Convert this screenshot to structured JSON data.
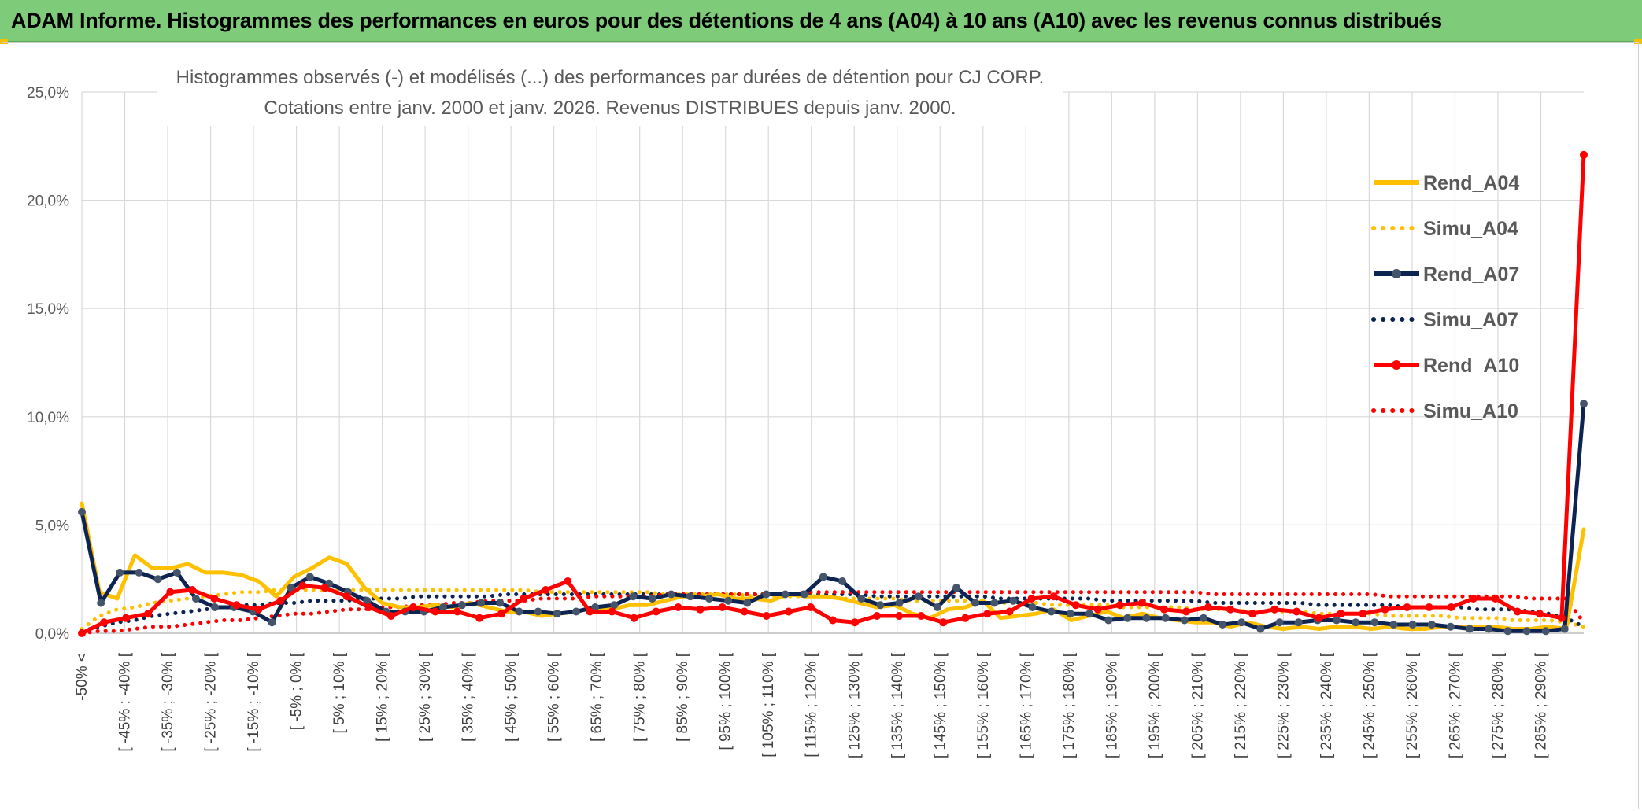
{
  "header": {
    "title": "ADAM Informe. Histogrammes des performances en euros pour des détentions de 4 ans (A04) à 10 ans (A10) avec les revenus connus distribués"
  },
  "colors": {
    "banner": "#7ecb7a",
    "A04": "#ffc000",
    "A07": "#0d2453",
    "A10": "#ff0000",
    "grid": "#d9d9d9"
  },
  "chart_data": {
    "type": "line",
    "title": "Histogrammes observés (-) et modélisés (...) des performances par durées de détention pour CJ CORP.",
    "subtitle": "Cotations entre janv. 2000 et janv. 2026. Revenus DISTRIBUES depuis janv. 2000.",
    "y_ticks": [
      "0,0%",
      "5,0%",
      "10,0%",
      "15,0%",
      "20,0%",
      "25,0%"
    ],
    "ylim": [
      0,
      25
    ],
    "grid": true,
    "legend_position": "right",
    "x_tick_labels": [
      "-50% <",
      "[ -45% ; -40% [",
      "[ -35% ; -30% [",
      "[ -25% ; -20% [",
      "[ -15% ; -10% [",
      "[ -5% ; 0% [",
      "[ 5% ; 10% [",
      "[ 15% ; 20% [",
      "[ 25% ; 30% [",
      "[ 35% ; 40% [",
      "[ 45% ; 50% [",
      "[ 55% ; 60% [",
      "[ 65% ; 70% [",
      "[ 75% ; 80% [",
      "[ 85% ; 90% [",
      "[ 95% ; 100% [",
      "[ 105% ; 110% [",
      "[ 115% ; 120% [",
      "[ 125% ; 130% [",
      "[ 135% ; 140% [",
      "[ 145% ; 150% [",
      "[ 155% ; 160% [",
      "[ 165% ; 170% [",
      "[ 175% ; 180% [",
      "[ 185% ; 190% [",
      "[ 195% ; 200% [",
      "[ 205% ; 210% [",
      "[ 215% ; 220% [",
      "[ 225% ; 230% [",
      "[ 235% ; 240% [",
      "[ 245% ; 250% [",
      "[ 255% ; 260% [",
      "[ 265% ; 270% [",
      "[ 275% ; 280% [",
      "[ 285% ; 290% ["
    ],
    "series": [
      {
        "name": "Rend_A04",
        "style": "solid",
        "color": "#ffc000",
        "markers": false,
        "values": [
          6.0,
          1.9,
          1.6,
          3.6,
          3.0,
          3.0,
          3.2,
          2.8,
          2.8,
          2.7,
          2.4,
          1.7,
          2.6,
          3.0,
          3.5,
          3.2,
          2.1,
          1.4,
          1.2,
          1.2,
          1.3,
          1.2,
          1.4,
          1.2,
          1.0,
          1.0,
          0.8,
          0.9,
          1.0,
          1.2,
          1.1,
          1.3,
          1.3,
          1.5,
          1.7,
          1.7,
          1.8,
          1.6,
          1.6,
          1.5,
          1.8,
          1.7,
          1.7,
          1.6,
          1.4,
          1.2,
          1.3,
          0.9,
          0.7,
          1.1,
          1.2,
          1.5,
          0.7,
          0.8,
          0.9,
          1.1,
          0.6,
          0.8,
          1.0,
          0.7,
          0.9,
          0.7,
          0.6,
          0.5,
          0.5,
          0.3,
          0.5,
          0.3,
          0.2,
          0.3,
          0.2,
          0.3,
          0.3,
          0.2,
          0.3,
          0.2,
          0.2,
          0.3,
          0.3,
          0.3,
          0.3,
          0.2,
          0.2,
          0.3,
          0.2,
          4.8
        ]
      },
      {
        "name": "Simu_A04",
        "style": "dotted",
        "color": "#ffc000",
        "values": [
          0.2,
          0.8,
          1.1,
          1.2,
          1.4,
          1.5,
          1.6,
          1.7,
          1.8,
          1.9,
          1.9,
          2.0,
          2.0,
          2.0,
          2.0,
          2.0,
          2.0,
          2.0,
          2.0,
          2.0,
          2.0,
          2.0,
          2.0,
          2.0,
          2.0,
          2.0,
          1.9,
          1.9,
          1.9,
          1.9,
          1.9,
          1.9,
          1.9,
          1.8,
          1.8,
          1.8,
          1.8,
          1.8,
          1.7,
          1.7,
          1.7,
          1.7,
          1.7,
          1.6,
          1.6,
          1.6,
          1.6,
          1.5,
          1.5,
          1.5,
          1.5,
          1.4,
          1.4,
          1.4,
          1.4,
          1.3,
          1.3,
          1.3,
          1.3,
          1.2,
          1.2,
          1.2,
          1.2,
          1.1,
          1.1,
          1.1,
          1.0,
          1.0,
          1.0,
          1.0,
          0.9,
          0.9,
          0.9,
          0.9,
          0.8,
          0.8,
          0.8,
          0.8,
          0.7,
          0.7,
          0.7,
          0.6,
          0.6,
          0.6,
          0.5,
          0.3
        ]
      },
      {
        "name": "Rend_A07",
        "style": "solid",
        "color": "#0d2453",
        "markers": true,
        "marker_color": "#44546a",
        "values": [
          5.6,
          1.4,
          2.8,
          2.8,
          2.5,
          2.8,
          1.6,
          1.2,
          1.2,
          1.0,
          0.5,
          2.1,
          2.6,
          2.3,
          1.9,
          1.5,
          1.0,
          1.0,
          1.0,
          1.2,
          1.3,
          1.4,
          1.4,
          1.0,
          1.0,
          0.9,
          1.0,
          1.2,
          1.3,
          1.7,
          1.6,
          1.8,
          1.7,
          1.6,
          1.5,
          1.4,
          1.8,
          1.8,
          1.8,
          2.6,
          2.4,
          1.6,
          1.3,
          1.4,
          1.7,
          1.2,
          2.1,
          1.4,
          1.4,
          1.5,
          1.2,
          1.0,
          0.9,
          0.9,
          0.6,
          0.7,
          0.7,
          0.7,
          0.6,
          0.7,
          0.4,
          0.5,
          0.2,
          0.5,
          0.5,
          0.6,
          0.6,
          0.5,
          0.5,
          0.4,
          0.4,
          0.4,
          0.3,
          0.2,
          0.2,
          0.1,
          0.1,
          0.1,
          0.2,
          10.6
        ]
      },
      {
        "name": "Simu_A07",
        "style": "dotted",
        "color": "#0d2453",
        "values": [
          0.1,
          0.3,
          0.5,
          0.6,
          0.8,
          0.9,
          1.0,
          1.1,
          1.2,
          1.3,
          1.3,
          1.4,
          1.4,
          1.5,
          1.5,
          1.5,
          1.6,
          1.6,
          1.6,
          1.7,
          1.7,
          1.7,
          1.7,
          1.7,
          1.8,
          1.8,
          1.8,
          1.8,
          1.8,
          1.8,
          1.8,
          1.8,
          1.8,
          1.8,
          1.8,
          1.8,
          1.8,
          1.8,
          1.8,
          1.8,
          1.8,
          1.8,
          1.8,
          1.8,
          1.8,
          1.7,
          1.7,
          1.7,
          1.7,
          1.7,
          1.7,
          1.7,
          1.6,
          1.6,
          1.6,
          1.6,
          1.6,
          1.6,
          1.5,
          1.5,
          1.5,
          1.5,
          1.5,
          1.5,
          1.4,
          1.4,
          1.4,
          1.4,
          1.4,
          1.4,
          1.3,
          1.3,
          1.3,
          1.3,
          1.3,
          1.2,
          1.2,
          1.2,
          1.2,
          1.1,
          1.1,
          1.1,
          1.0,
          0.9,
          0.7,
          0.3
        ]
      },
      {
        "name": "Rend_A10",
        "style": "solid",
        "color": "#ff0000",
        "markers": true,
        "marker_color": "#ff0000",
        "values": [
          0.0,
          0.5,
          0.7,
          0.9,
          1.9,
          2.0,
          1.6,
          1.3,
          1.1,
          1.5,
          2.2,
          2.1,
          1.7,
          1.2,
          0.8,
          1.2,
          1.0,
          1.0,
          0.7,
          0.9,
          1.6,
          2.0,
          2.4,
          1.0,
          1.0,
          0.7,
          1.0,
          1.2,
          1.1,
          1.2,
          1.0,
          0.8,
          1.0,
          1.2,
          0.6,
          0.5,
          0.8,
          0.8,
          0.8,
          0.5,
          0.7,
          0.9,
          1.0,
          1.6,
          1.7,
          1.3,
          1.1,
          1.3,
          1.4,
          1.1,
          1.0,
          1.2,
          1.1,
          0.9,
          1.1,
          1.0,
          0.7,
          0.9,
          0.9,
          1.1,
          1.2,
          1.2,
          1.2,
          1.6,
          1.6,
          1.0,
          0.9,
          0.7,
          22.1
        ]
      },
      {
        "name": "Simu_A10",
        "style": "dotted",
        "color": "#ff0000",
        "values": [
          0.0,
          0.1,
          0.1,
          0.2,
          0.3,
          0.3,
          0.4,
          0.5,
          0.6,
          0.6,
          0.7,
          0.8,
          0.9,
          0.9,
          1.0,
          1.1,
          1.1,
          1.2,
          1.2,
          1.3,
          1.3,
          1.4,
          1.4,
          1.5,
          1.5,
          1.5,
          1.6,
          1.6,
          1.6,
          1.7,
          1.7,
          1.7,
          1.7,
          1.8,
          1.8,
          1.8,
          1.8,
          1.8,
          1.8,
          1.8,
          1.8,
          1.9,
          1.9,
          1.9,
          1.9,
          1.9,
          1.9,
          1.9,
          1.9,
          1.9,
          1.9,
          1.9,
          1.9,
          1.9,
          1.9,
          1.9,
          1.9,
          1.9,
          1.9,
          1.9,
          1.9,
          1.9,
          1.9,
          1.9,
          1.8,
          1.8,
          1.8,
          1.8,
          1.8,
          1.8,
          1.8,
          1.8,
          1.8,
          1.8,
          1.7,
          1.7,
          1.7,
          1.7,
          1.7,
          1.7,
          1.7,
          1.7,
          1.6,
          1.6,
          1.6,
          0.5
        ]
      }
    ]
  }
}
